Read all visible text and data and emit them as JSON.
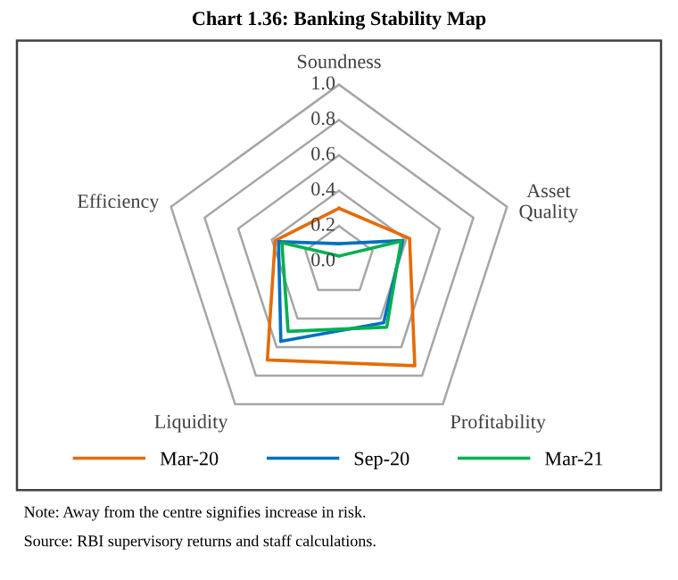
{
  "chart_data": {
    "type": "radar",
    "title": "Chart 1.36: Banking Stability Map",
    "categories": [
      "Soundness",
      "Asset Quality",
      "Profitability",
      "Liquidity",
      "Efficiency"
    ],
    "series": [
      {
        "name": "Mar-20",
        "color": "#e46c0a",
        "values": [
          0.3,
          0.42,
          0.73,
          0.69,
          0.38
        ]
      },
      {
        "name": "Sep-20",
        "color": "#0070c0",
        "values": [
          0.1,
          0.38,
          0.43,
          0.56,
          0.36
        ]
      },
      {
        "name": "Mar-21",
        "color": "#00b050",
        "values": [
          0.03,
          0.37,
          0.46,
          0.49,
          0.34
        ]
      }
    ],
    "ylim": [
      0.0,
      1.0
    ],
    "yticks": [
      {
        "value": 0.0,
        "label": "0.0"
      },
      0.2,
      0.4,
      0.6,
      0.8,
      {
        "value": 1.0,
        "label": "1.0"
      }
    ],
    "grid": true,
    "legend": "bottom",
    "annotations": [
      "Note: Away from the centre signifies increase in risk.",
      "Source: RBI supervisory returns and staff calculations."
    ]
  }
}
